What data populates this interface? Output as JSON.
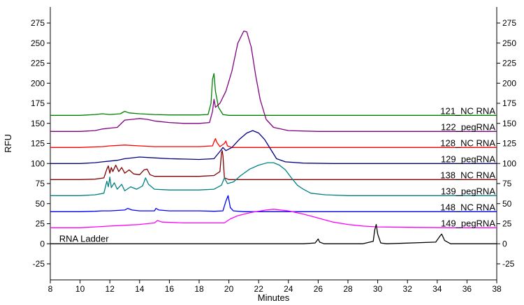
{
  "chart_data": {
    "type": "line",
    "title": "",
    "xlabel": "Minutes",
    "ylabel": "RFU",
    "xlim": [
      8,
      38
    ],
    "ylim": [
      -45,
      295
    ],
    "x_ticks": [
      8,
      10,
      12,
      14,
      16,
      18,
      20,
      22,
      24,
      26,
      28,
      30,
      32,
      34,
      36,
      38
    ],
    "y_ticks": [
      -25,
      0,
      25,
      50,
      75,
      100,
      125,
      150,
      175,
      200,
      225,
      250,
      275
    ],
    "grid": false,
    "legend": "labels at right end of each trace",
    "series": [
      {
        "name": "121_NC RNA",
        "color": "#008000",
        "label_y": 165,
        "points": [
          [
            8,
            160
          ],
          [
            10,
            160
          ],
          [
            11,
            161
          ],
          [
            11.5,
            162
          ],
          [
            12,
            161
          ],
          [
            12.7,
            162
          ],
          [
            13,
            165
          ],
          [
            13.3,
            163
          ],
          [
            14,
            162
          ],
          [
            15,
            161
          ],
          [
            16,
            160.5
          ],
          [
            17,
            160.5
          ],
          [
            18,
            160.5
          ],
          [
            18.6,
            161
          ],
          [
            18.8,
            175
          ],
          [
            18.9,
            205
          ],
          [
            19.0,
            212
          ],
          [
            19.1,
            190
          ],
          [
            19.3,
            170
          ],
          [
            19.6,
            161
          ],
          [
            20,
            160
          ],
          [
            25,
            160
          ],
          [
            30,
            160
          ],
          [
            35,
            160
          ],
          [
            38,
            160
          ]
        ]
      },
      {
        "name": "122_pegRNA",
        "color": "#800080",
        "label_y": 145,
        "points": [
          [
            8,
            140
          ],
          [
            10,
            140
          ],
          [
            11,
            141
          ],
          [
            11.5,
            143
          ],
          [
            12,
            144
          ],
          [
            12.5,
            145
          ],
          [
            13,
            154
          ],
          [
            13.5,
            155
          ],
          [
            14,
            156
          ],
          [
            14.5,
            155
          ],
          [
            15,
            153
          ],
          [
            16,
            151
          ],
          [
            17,
            150
          ],
          [
            18,
            150
          ],
          [
            18.7,
            151
          ],
          [
            18.9,
            165
          ],
          [
            19.0,
            180
          ],
          [
            19.1,
            170
          ],
          [
            19.4,
            175
          ],
          [
            19.8,
            190
          ],
          [
            20.2,
            215
          ],
          [
            20.6,
            250
          ],
          [
            21.0,
            265
          ],
          [
            21.2,
            264
          ],
          [
            21.5,
            245
          ],
          [
            21.8,
            210
          ],
          [
            22.1,
            180
          ],
          [
            22.5,
            155
          ],
          [
            23,
            145
          ],
          [
            24,
            141
          ],
          [
            26,
            140
          ],
          [
            30,
            140
          ],
          [
            35,
            140
          ],
          [
            38,
            140
          ]
        ]
      },
      {
        "name": "128_NC RNA",
        "color": "#ff0000",
        "label_y": 125,
        "points": [
          [
            8,
            120
          ],
          [
            10,
            120
          ],
          [
            11.5,
            121
          ],
          [
            12,
            122
          ],
          [
            13,
            123
          ],
          [
            14,
            122
          ],
          [
            15,
            121
          ],
          [
            16,
            121
          ],
          [
            17,
            121
          ],
          [
            18,
            121
          ],
          [
            18.9,
            122
          ],
          [
            19.0,
            127
          ],
          [
            19.1,
            131
          ],
          [
            19.2,
            126
          ],
          [
            19.4,
            121
          ],
          [
            19.7,
            125
          ],
          [
            19.8,
            128
          ],
          [
            19.9,
            122
          ],
          [
            20.2,
            120
          ],
          [
            25,
            120
          ],
          [
            30,
            120
          ],
          [
            35,
            120
          ],
          [
            38,
            120
          ]
        ]
      },
      {
        "name": "129_pegRNA",
        "color": "#000080",
        "label_y": 105,
        "points": [
          [
            8,
            100
          ],
          [
            10,
            100
          ],
          [
            11,
            101
          ],
          [
            11.5,
            102
          ],
          [
            12,
            103
          ],
          [
            12.5,
            104
          ],
          [
            13,
            106
          ],
          [
            14,
            108
          ],
          [
            15,
            107
          ],
          [
            16,
            106
          ],
          [
            17,
            105.5
          ],
          [
            18,
            105
          ],
          [
            19,
            106
          ],
          [
            19.4,
            115
          ],
          [
            19.6,
            120
          ],
          [
            19.8,
            116
          ],
          [
            20.2,
            120
          ],
          [
            20.7,
            130
          ],
          [
            21.2,
            138
          ],
          [
            21.6,
            141
          ],
          [
            22.0,
            138
          ],
          [
            22.4,
            130
          ],
          [
            22.8,
            118
          ],
          [
            23.2,
            106
          ],
          [
            23.8,
            102
          ],
          [
            25,
            100.5
          ],
          [
            27,
            100
          ],
          [
            30,
            100
          ],
          [
            35,
            100
          ],
          [
            38,
            100
          ]
        ]
      },
      {
        "name": "138_NC RNA",
        "color": "#800000",
        "label_y": 85,
        "points": [
          [
            8,
            80
          ],
          [
            10,
            80
          ],
          [
            11,
            80.5
          ],
          [
            11.6,
            82
          ],
          [
            11.8,
            93
          ],
          [
            11.9,
            97
          ],
          [
            12.0,
            88
          ],
          [
            12.1,
            95
          ],
          [
            12.2,
            90
          ],
          [
            12.4,
            98
          ],
          [
            12.6,
            90
          ],
          [
            12.8,
            95
          ],
          [
            13,
            88
          ],
          [
            13.3,
            92
          ],
          [
            13.6,
            87
          ],
          [
            14,
            86
          ],
          [
            14.3,
            92
          ],
          [
            14.5,
            93
          ],
          [
            14.7,
            86
          ],
          [
            15,
            84
          ],
          [
            16,
            84
          ],
          [
            17,
            84
          ],
          [
            18,
            84
          ],
          [
            19,
            85
          ],
          [
            19.4,
            90
          ],
          [
            19.5,
            113
          ],
          [
            19.55,
            116
          ],
          [
            19.6,
            110
          ],
          [
            19.7,
            82
          ],
          [
            20,
            80
          ],
          [
            25,
            80
          ],
          [
            30,
            80
          ],
          [
            35,
            80
          ],
          [
            38,
            80
          ]
        ]
      },
      {
        "name": "139_pegRNA",
        "color": "#008080",
        "label_y": 65,
        "points": [
          [
            8,
            60
          ],
          [
            10,
            60
          ],
          [
            11,
            61
          ],
          [
            11.6,
            63
          ],
          [
            11.8,
            78
          ],
          [
            11.9,
            71
          ],
          [
            12.0,
            83
          ],
          [
            12.1,
            70
          ],
          [
            12.3,
            76
          ],
          [
            12.5,
            68
          ],
          [
            12.8,
            74
          ],
          [
            13,
            66
          ],
          [
            13.4,
            71
          ],
          [
            13.8,
            68
          ],
          [
            14.2,
            72
          ],
          [
            14.4,
            82
          ],
          [
            14.6,
            74
          ],
          [
            15,
            68
          ],
          [
            16,
            67
          ],
          [
            17,
            67
          ],
          [
            18,
            67
          ],
          [
            19,
            68
          ],
          [
            19.5,
            73
          ],
          [
            19.7,
            82
          ],
          [
            19.9,
            75
          ],
          [
            20.3,
            77
          ],
          [
            20.8,
            85
          ],
          [
            21.4,
            93
          ],
          [
            22,
            98
          ],
          [
            22.6,
            101
          ],
          [
            23,
            101
          ],
          [
            23.4,
            98
          ],
          [
            23.8,
            92
          ],
          [
            24.2,
            82
          ],
          [
            24.6,
            73
          ],
          [
            25,
            68
          ],
          [
            25.5,
            63
          ],
          [
            26.5,
            61
          ],
          [
            28,
            60
          ],
          [
            30,
            60
          ],
          [
            35,
            60
          ],
          [
            38,
            60
          ]
        ]
      },
      {
        "name": "148_NC RNA",
        "color": "#0000ff",
        "label_y": 45,
        "points": [
          [
            8,
            40
          ],
          [
            10,
            40
          ],
          [
            11,
            40.5
          ],
          [
            11.5,
            41
          ],
          [
            12,
            41
          ],
          [
            13,
            42
          ],
          [
            13.2,
            44
          ],
          [
            13.5,
            42
          ],
          [
            14,
            41
          ],
          [
            15,
            41
          ],
          [
            15.1,
            44
          ],
          [
            15.3,
            42
          ],
          [
            16,
            41
          ],
          [
            18,
            41
          ],
          [
            19,
            40.5
          ],
          [
            19.6,
            41
          ],
          [
            19.8,
            53
          ],
          [
            19.95,
            60
          ],
          [
            20.1,
            45
          ],
          [
            20.3,
            41
          ],
          [
            21,
            40
          ],
          [
            25,
            40
          ],
          [
            30,
            40
          ],
          [
            35,
            40
          ],
          [
            38,
            40
          ]
        ]
      },
      {
        "name": "149_pegRNA",
        "color": "#ff00ff",
        "label_y": 25,
        "points": [
          [
            8,
            20
          ],
          [
            10,
            20
          ],
          [
            11,
            21
          ],
          [
            12,
            22
          ],
          [
            13,
            23
          ],
          [
            14,
            24
          ],
          [
            15,
            26
          ],
          [
            15.2,
            29
          ],
          [
            15.5,
            27
          ],
          [
            17,
            26
          ],
          [
            19,
            26
          ],
          [
            19.7,
            26
          ],
          [
            20.1,
            31
          ],
          [
            20.6,
            35
          ],
          [
            21.5,
            39
          ],
          [
            22.5,
            42
          ],
          [
            23,
            43
          ],
          [
            24,
            41
          ],
          [
            25,
            37
          ],
          [
            26,
            32
          ],
          [
            27,
            27
          ],
          [
            28,
            24
          ],
          [
            29,
            22
          ],
          [
            30,
            21
          ],
          [
            32,
            20.5
          ],
          [
            35,
            20
          ],
          [
            38,
            20
          ]
        ]
      },
      {
        "name": "RNA Ladder",
        "color": "#000000",
        "label_y": 6,
        "points": [
          [
            8,
            0
          ],
          [
            15,
            0
          ],
          [
            20,
            0
          ],
          [
            25,
            0
          ],
          [
            25.8,
            1
          ],
          [
            26.0,
            6
          ],
          [
            26.1,
            2
          ],
          [
            26.4,
            0
          ],
          [
            29,
            0
          ],
          [
            29.7,
            3
          ],
          [
            29.8,
            17
          ],
          [
            29.9,
            24
          ],
          [
            30.0,
            12
          ],
          [
            30.2,
            1
          ],
          [
            30.6,
            0
          ],
          [
            33.9,
            2
          ],
          [
            34.2,
            10
          ],
          [
            34.3,
            12
          ],
          [
            34.5,
            4
          ],
          [
            34.9,
            0
          ],
          [
            38,
            0
          ]
        ]
      }
    ]
  }
}
